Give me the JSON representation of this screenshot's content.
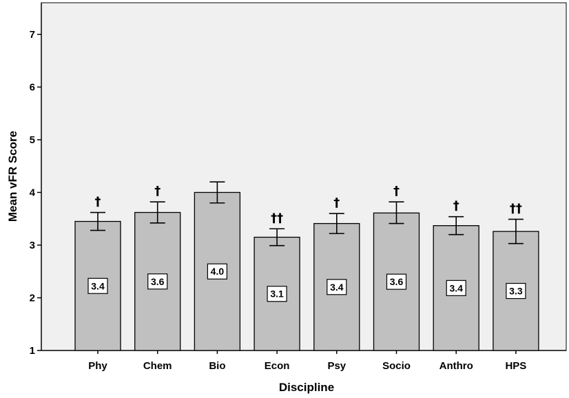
{
  "chart_data": {
    "type": "bar",
    "title": "",
    "xlabel": "Discipline",
    "ylabel": "Mean vFR Score",
    "ylim": [
      1,
      7.6
    ],
    "yticks": [
      1,
      2,
      3,
      4,
      5,
      6,
      7
    ],
    "grid": false,
    "categories": [
      "Phy",
      "Chem",
      "Bio",
      "Econ",
      "Psy",
      "Socio",
      "Anthro",
      "HPS"
    ],
    "values": [
      3.45,
      3.62,
      4.0,
      3.15,
      3.41,
      3.61,
      3.37,
      3.26
    ],
    "error_low": [
      3.28,
      3.42,
      3.8,
      2.99,
      3.22,
      3.41,
      3.2,
      3.03
    ],
    "error_high": [
      3.62,
      3.82,
      4.2,
      3.31,
      3.6,
      3.82,
      3.54,
      3.49
    ],
    "data_labels": [
      "3.4",
      "3.6",
      "4.0",
      "3.1",
      "3.4",
      "3.6",
      "3.4",
      "3.3"
    ],
    "annotations": [
      "†",
      "†",
      "",
      "††",
      "†",
      "†",
      "†",
      "††"
    ],
    "colors": {
      "plot_background": "#f0f0f0",
      "bar_fill": "#c0c0c0",
      "bar_stroke": "#000000"
    }
  }
}
